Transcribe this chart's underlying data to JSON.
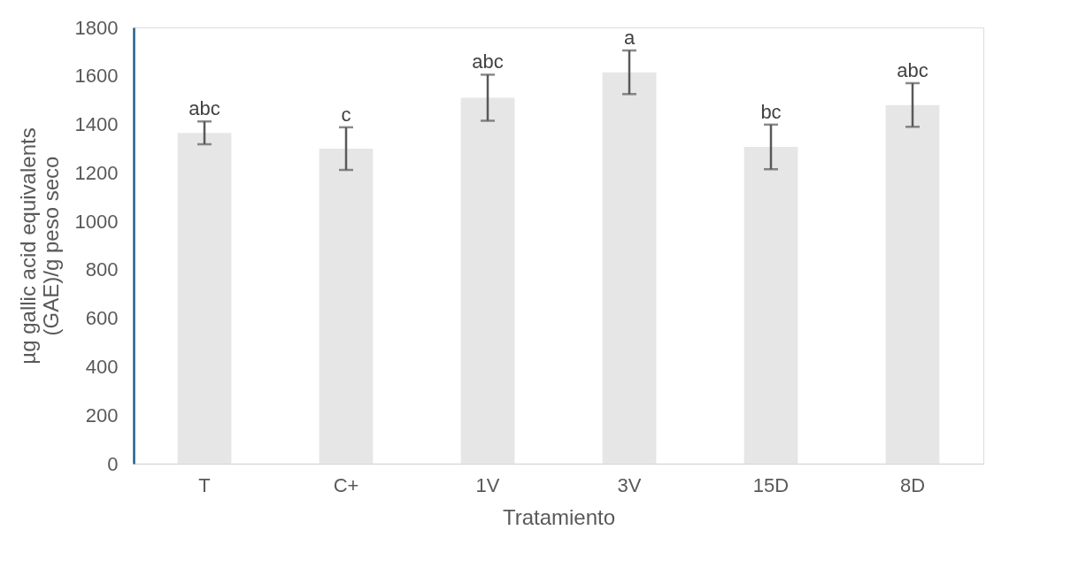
{
  "chart_data": {
    "type": "bar",
    "xlabel": "Tratamiento",
    "ylabel": "µg gallic acid equivalents\n(GAE)/g  peso seco",
    "categories": [
      "T",
      "C+",
      "1V",
      "3V",
      "15D",
      "8D"
    ],
    "values": [
      1365,
      1300,
      1510,
      1615,
      1307,
      1480
    ],
    "errors": [
      47,
      88,
      95,
      90,
      92,
      90
    ],
    "color": "#e6e6e6",
    "ylim": [
      0,
      1800
    ],
    "yticks": [
      0,
      200,
      400,
      600,
      800,
      1000,
      1200,
      1400,
      1600,
      1800
    ],
    "grid": false,
    "annotations": [
      {
        "text": "abc",
        "x": "T",
        "y": 1412
      },
      {
        "text": "c",
        "x": "C+",
        "y": 1388
      },
      {
        "text": "abc",
        "x": "1V",
        "y": 1605
      },
      {
        "text": "a",
        "x": "3V",
        "y": 1705
      },
      {
        "text": "bc",
        "x": "15D",
        "y": 1399
      },
      {
        "text": "abc",
        "x": "8D",
        "y": 1570
      }
    ]
  }
}
